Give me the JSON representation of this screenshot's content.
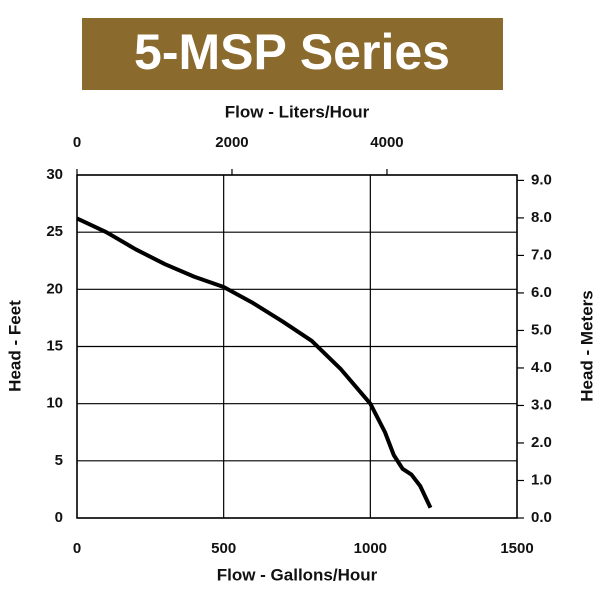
{
  "chart_data": {
    "type": "line",
    "title": "5-MSP Series",
    "banner_color": "#8b6a2e",
    "xlabel": "Flow - Gallons/Hour",
    "x2label": "Flow - Liters/Hour",
    "ylabel": "Head - Feet",
    "y2label": "Head - Meters",
    "xlim": [
      0,
      1500
    ],
    "xticks": [
      0,
      500,
      1000,
      1500
    ],
    "x2lim": [
      0,
      5678
    ],
    "x2ticks": [
      0,
      2000,
      4000
    ],
    "ylim": [
      0,
      30
    ],
    "yticks": [
      0,
      5,
      10,
      15,
      20,
      25,
      30
    ],
    "y2lim": [
      0,
      9.144
    ],
    "y2ticks": [
      {
        "value": 0,
        "label": "0.0"
      },
      {
        "value": 1,
        "label": "1.0"
      },
      {
        "value": 2,
        "label": "2.0"
      },
      {
        "value": 3,
        "label": "3.0"
      },
      {
        "value": 4,
        "label": "4.0"
      },
      {
        "value": 5,
        "label": "5.0"
      },
      {
        "value": 6,
        "label": "6.0"
      },
      {
        "value": 7,
        "label": "7.0"
      },
      {
        "value": 8,
        "label": "8.0"
      },
      {
        "value": 9,
        "label": "9.0"
      }
    ],
    "grid": true,
    "series": [
      {
        "color": "#000000",
        "x": [
          0,
          100,
          200,
          300,
          400,
          500,
          600,
          700,
          800,
          900,
          1000,
          1050,
          1080,
          1110,
          1140,
          1170,
          1205
        ],
        "values": [
          26.2,
          25,
          23.5,
          22.2,
          21.1,
          20.2,
          18.8,
          17.2,
          15.5,
          13,
          10,
          7.5,
          5.5,
          4.3,
          3.8,
          2.8,
          0.9
        ]
      }
    ]
  }
}
